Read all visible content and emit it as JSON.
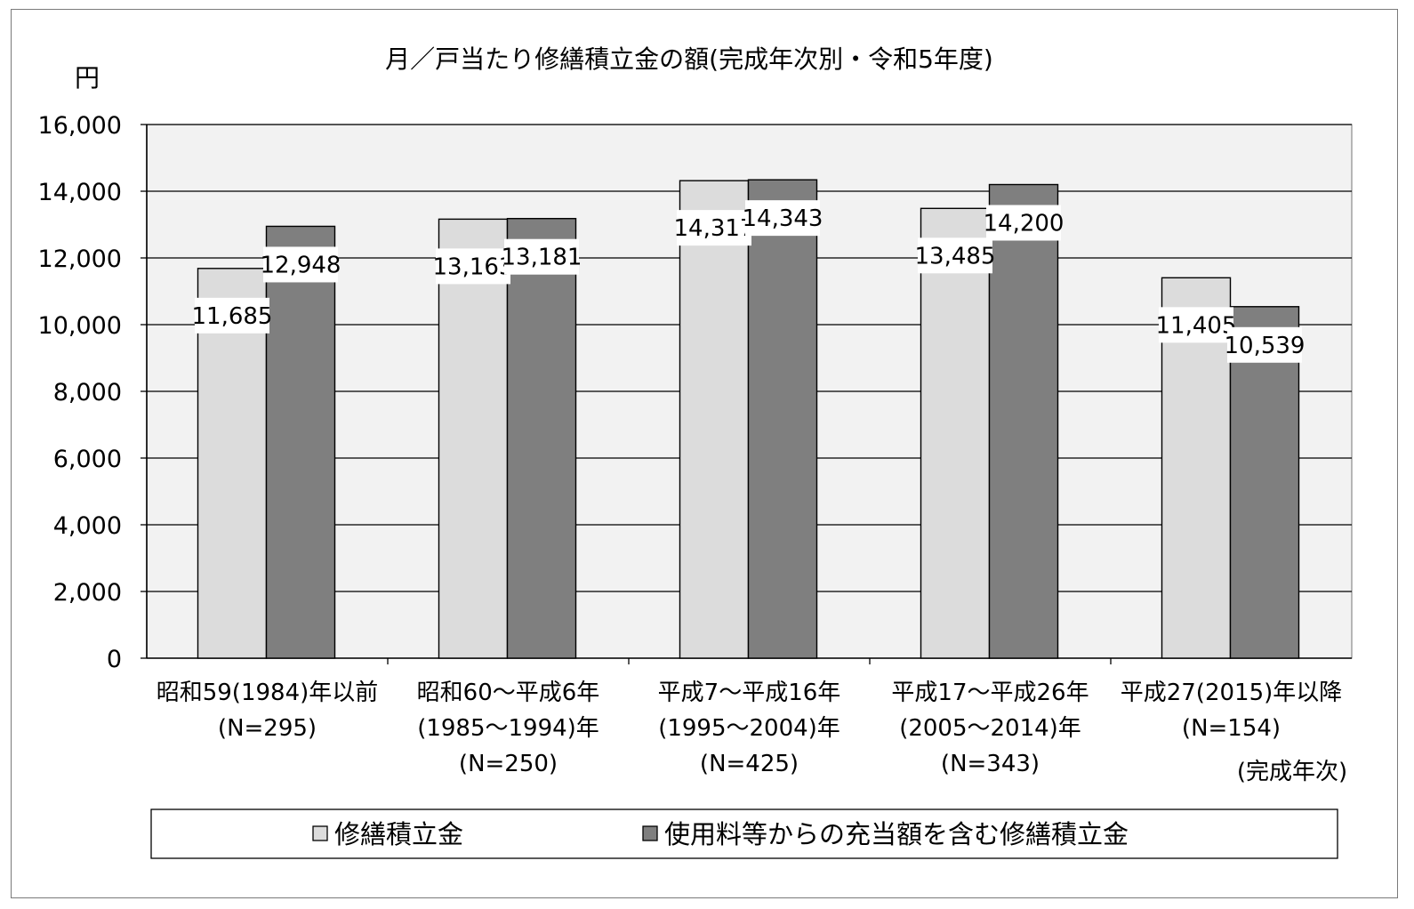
{
  "chart_data": {
    "type": "bar",
    "title": "月／戸当たり修繕積立金の額(完成年次別・令和5年度)",
    "ylabel": "円",
    "xlabel_note": "(完成年次)",
    "ylim": [
      0,
      16000
    ],
    "yticks": [
      "0",
      "2,000",
      "4,000",
      "6,000",
      "8,000",
      "10,000",
      "12,000",
      "14,000",
      "16,000"
    ],
    "grid": true,
    "legend_position": "bottom",
    "categories": [
      [
        "昭和59(1984)年以前",
        "(N=295)"
      ],
      [
        "昭和60～平成6年",
        "(1985～1994)年",
        "(N=250)"
      ],
      [
        "平成7～平成16年",
        "(1995～2004)年",
        "(N=425)"
      ],
      [
        "平成17～平成26年",
        "(2005～2014)年",
        "(N=343)"
      ],
      [
        "平成27(2015)年以降",
        "(N=154)"
      ]
    ],
    "series": [
      {
        "name": "修繕積立金",
        "color": "#dcdcdc",
        "values": [
          11685,
          13163,
          14317,
          13485,
          11405
        ],
        "labels": [
          "11,685",
          "13,163",
          "14,317",
          "13,485",
          "11,405"
        ]
      },
      {
        "name": "使用料等からの充当額を含む修繕積立金",
        "color": "#7f7f7f",
        "values": [
          12948,
          13181,
          14343,
          14200,
          10539
        ],
        "labels": [
          "12,948",
          "13,181",
          "14,343",
          "14,200",
          "10,539"
        ]
      }
    ]
  }
}
